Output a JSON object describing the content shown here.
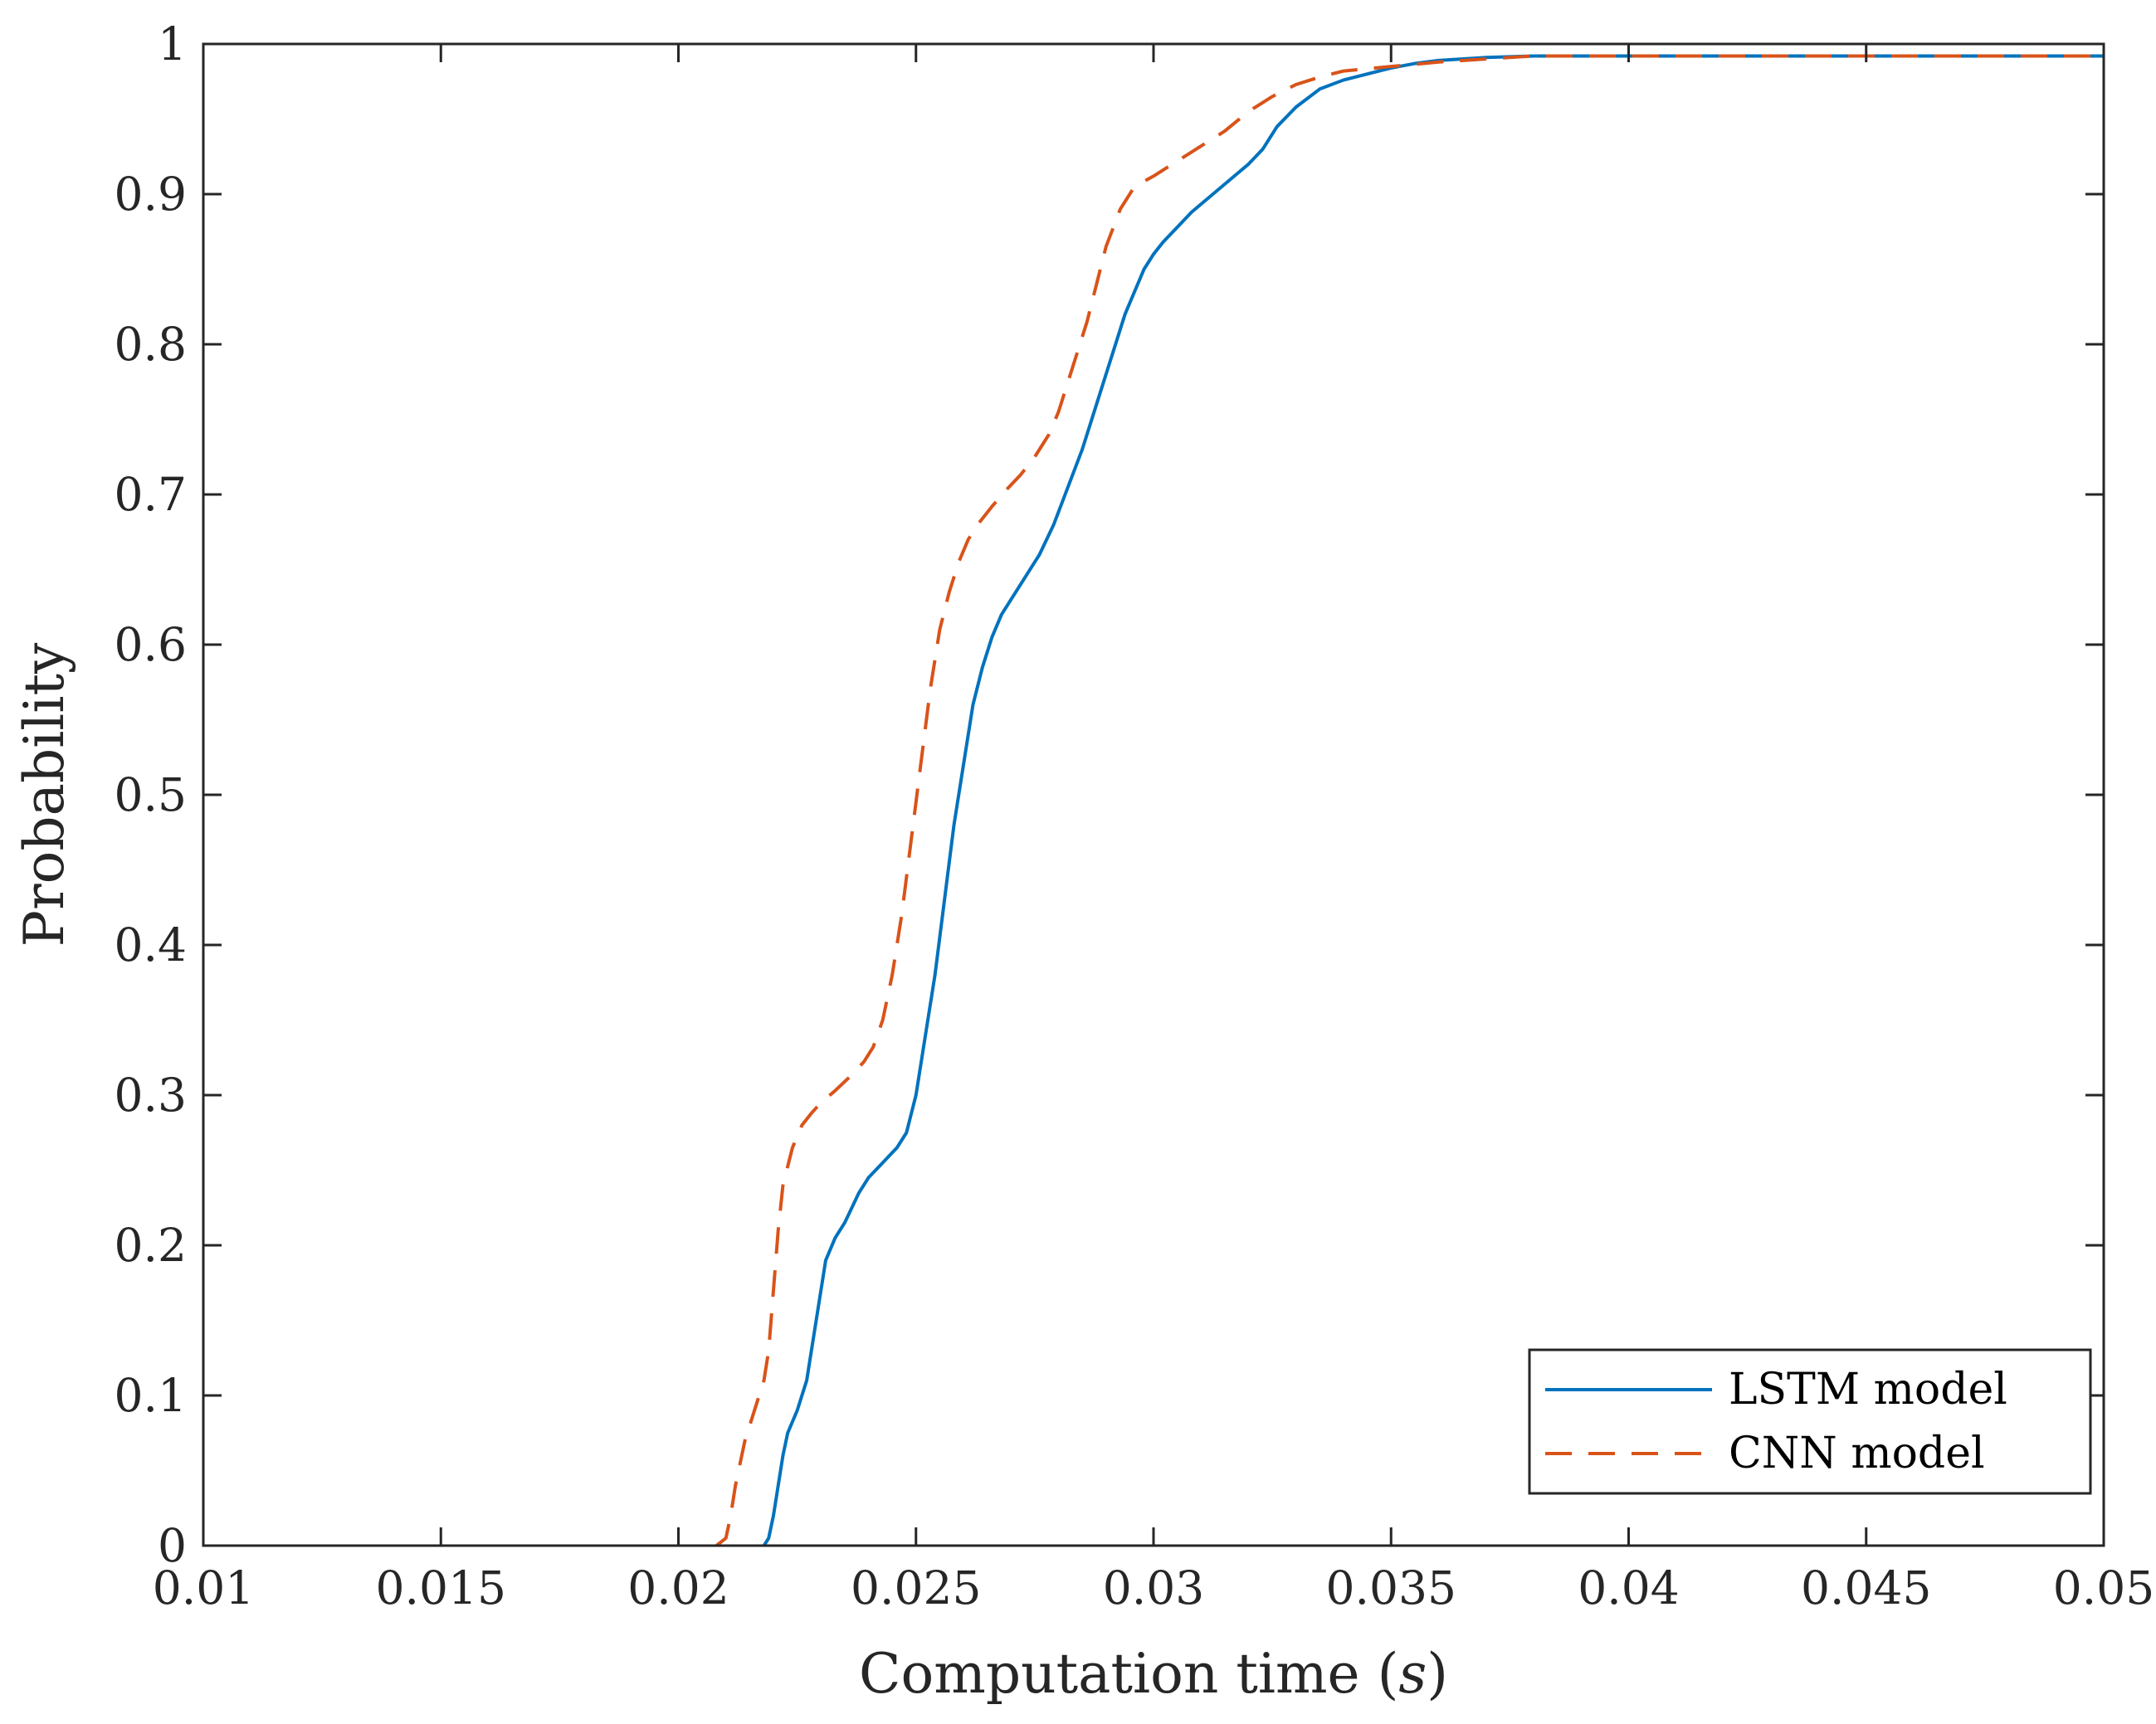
{
  "chart_data": {
    "type": "line",
    "title": "",
    "xlabel": "Computation time (",
    "xlabel_var": "s",
    "xlabel_close": ")",
    "ylabel": "Probability",
    "xlim": [
      0.01,
      0.05
    ],
    "ylim": [
      0,
      1
    ],
    "xticks": [
      0.01,
      0.015,
      0.02,
      0.025,
      0.03,
      0.035,
      0.04,
      0.045,
      0.05
    ],
    "xtick_labels": [
      "0.01",
      "0.015",
      "0.02",
      "0.025",
      "0.03",
      "0.035",
      "0.04",
      "0.045",
      "0.05"
    ],
    "yticks": [
      0,
      0.1,
      0.2,
      0.3,
      0.4,
      0.5,
      0.6,
      0.7,
      0.8,
      0.9,
      1
    ],
    "ytick_labels": [
      "0",
      "0.1",
      "0.2",
      "0.3",
      "0.4",
      "0.5",
      "0.6",
      "0.7",
      "0.8",
      "0.9",
      "1"
    ],
    "grid": false,
    "legend_position": "bottom-right",
    "series": [
      {
        "name": "LSTM model",
        "color": "#0072bd",
        "line_style": "solid",
        "x": [
          0.0218,
          0.0219,
          0.022,
          0.0221,
          0.0222,
          0.0223,
          0.0225,
          0.0227,
          0.0229,
          0.0231,
          0.0233,
          0.0235,
          0.0238,
          0.024,
          0.0243,
          0.0246,
          0.0248,
          0.025,
          0.0252,
          0.0254,
          0.0256,
          0.0258,
          0.026,
          0.0262,
          0.0264,
          0.0266,
          0.0268,
          0.027,
          0.0273,
          0.0276,
          0.0279,
          0.0282,
          0.0285,
          0.0288,
          0.029,
          0.0292,
          0.0294,
          0.0296,
          0.0298,
          0.03,
          0.0302,
          0.0305,
          0.0308,
          0.0311,
          0.0314,
          0.0317,
          0.032,
          0.0323,
          0.0326,
          0.033,
          0.0335,
          0.034,
          0.0345,
          0.035,
          0.0355,
          0.036,
          0.037,
          0.038,
          0.039,
          0.04,
          0.045,
          0.05
        ],
        "y": [
          0.0,
          0.005,
          0.02,
          0.04,
          0.06,
          0.075,
          0.09,
          0.11,
          0.15,
          0.19,
          0.205,
          0.215,
          0.235,
          0.245,
          0.255,
          0.265,
          0.275,
          0.3,
          0.34,
          0.38,
          0.43,
          0.48,
          0.52,
          0.56,
          0.585,
          0.605,
          0.62,
          0.63,
          0.645,
          0.66,
          0.68,
          0.705,
          0.73,
          0.76,
          0.78,
          0.8,
          0.82,
          0.835,
          0.85,
          0.86,
          0.868,
          0.878,
          0.888,
          0.896,
          0.904,
          0.912,
          0.92,
          0.93,
          0.945,
          0.958,
          0.97,
          0.976,
          0.98,
          0.984,
          0.987,
          0.989,
          0.991,
          0.992,
          0.992,
          0.992,
          0.992,
          0.992
        ]
      },
      {
        "name": "CNN model",
        "color": "#d95319",
        "line_style": "dashed",
        "x": [
          0.0208,
          0.021,
          0.0211,
          0.0212,
          0.0214,
          0.0216,
          0.0218,
          0.0219,
          0.022,
          0.0221,
          0.0222,
          0.0224,
          0.0226,
          0.0228,
          0.023,
          0.0233,
          0.0236,
          0.0239,
          0.0241,
          0.0243,
          0.0245,
          0.0247,
          0.0249,
          0.0251,
          0.0253,
          0.0255,
          0.0257,
          0.0259,
          0.0261,
          0.0263,
          0.0266,
          0.0269,
          0.0272,
          0.0275,
          0.0278,
          0.028,
          0.0282,
          0.0284,
          0.0286,
          0.0288,
          0.029,
          0.0293,
          0.0296,
          0.03,
          0.0305,
          0.031,
          0.0315,
          0.032,
          0.0325,
          0.033,
          0.0335,
          0.034,
          0.035,
          0.036,
          0.037,
          0.038,
          0.039,
          0.04,
          0.045,
          0.05
        ],
        "y": [
          0.0,
          0.005,
          0.02,
          0.04,
          0.07,
          0.09,
          0.11,
          0.13,
          0.17,
          0.21,
          0.24,
          0.265,
          0.28,
          0.288,
          0.295,
          0.303,
          0.312,
          0.322,
          0.332,
          0.35,
          0.38,
          0.42,
          0.47,
          0.52,
          0.57,
          0.61,
          0.635,
          0.655,
          0.67,
          0.68,
          0.692,
          0.703,
          0.713,
          0.725,
          0.74,
          0.755,
          0.775,
          0.795,
          0.815,
          0.84,
          0.865,
          0.89,
          0.905,
          0.912,
          0.922,
          0.932,
          0.942,
          0.955,
          0.965,
          0.973,
          0.978,
          0.982,
          0.985,
          0.988,
          0.99,
          0.992,
          0.992,
          0.992,
          0.992,
          0.992
        ]
      }
    ]
  }
}
